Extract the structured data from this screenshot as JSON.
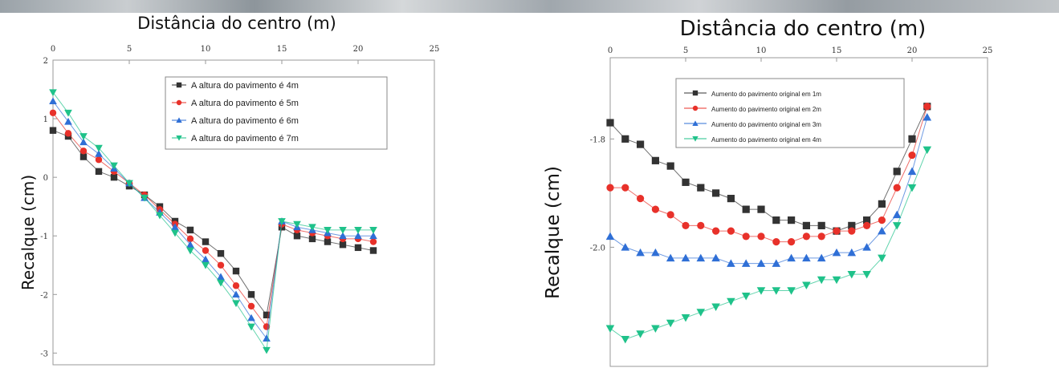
{
  "chart_data": [
    {
      "type": "line",
      "title": "Distância do centro (m)",
      "xlabel": "",
      "ylabel": "Recalque (cm)",
      "xlim": [
        0,
        25
      ],
      "ylim": [
        -3.2,
        2
      ],
      "xticks": [
        "0",
        "5",
        "10",
        "15",
        "20",
        "25"
      ],
      "yticks": [
        "2",
        "1",
        "0",
        "-1",
        "-2",
        "-3"
      ],
      "legend_position": "top-right",
      "x": [
        0,
        1,
        2,
        3,
        4,
        5,
        6,
        7,
        8,
        9,
        10,
        11,
        12,
        13,
        14,
        15,
        16,
        17,
        18,
        19,
        20,
        21
      ],
      "series": [
        {
          "name": "A altura do pavimento é 4m",
          "color": "#333333",
          "marker": "square",
          "values": [
            0.8,
            0.7,
            0.35,
            0.1,
            0.0,
            -0.15,
            -0.3,
            -0.5,
            -0.75,
            -0.9,
            -1.1,
            -1.3,
            -1.6,
            -2.0,
            -2.35,
            -0.85,
            -1.0,
            -1.05,
            -1.1,
            -1.15,
            -1.2,
            -1.25
          ]
        },
        {
          "name": "A altura do pavimento é 5m",
          "color": "#e8312a",
          "marker": "circle",
          "values": [
            1.1,
            0.75,
            0.45,
            0.3,
            0.1,
            -0.1,
            -0.3,
            -0.55,
            -0.8,
            -1.05,
            -1.25,
            -1.5,
            -1.85,
            -2.2,
            -2.55,
            -0.8,
            -0.9,
            -0.95,
            -1.0,
            -1.05,
            -1.05,
            -1.1
          ]
        },
        {
          "name": "A altura do pavimento é 6m",
          "color": "#2f6fd6",
          "marker": "triangle-up",
          "values": [
            1.3,
            0.95,
            0.6,
            0.4,
            0.15,
            -0.1,
            -0.35,
            -0.6,
            -0.85,
            -1.15,
            -1.4,
            -1.7,
            -2.0,
            -2.4,
            -2.75,
            -0.75,
            -0.85,
            -0.9,
            -0.95,
            -1.0,
            -1.0,
            -1.0
          ]
        },
        {
          "name": "A altura do pavimento é 7m",
          "color": "#1fc28a",
          "marker": "triangle-down",
          "values": [
            1.45,
            1.1,
            0.7,
            0.5,
            0.2,
            -0.1,
            -0.35,
            -0.65,
            -0.95,
            -1.25,
            -1.5,
            -1.8,
            -2.15,
            -2.55,
            -2.95,
            -0.75,
            -0.8,
            -0.85,
            -0.9,
            -0.9,
            -0.9,
            -0.9
          ]
        }
      ]
    },
    {
      "type": "line",
      "title": "Distância do centro (m)",
      "xlabel": "",
      "ylabel": "Recalque (cm)",
      "xlim": [
        0,
        25
      ],
      "ylim": [
        -2.22,
        -1.65
      ],
      "xticks": [
        "0",
        "5",
        "10",
        "15",
        "20",
        "25"
      ],
      "yticks": [
        "-1.8",
        "-2.0"
      ],
      "legend_position": "top-center",
      "x": [
        0,
        1,
        2,
        3,
        4,
        5,
        6,
        7,
        8,
        9,
        10,
        11,
        12,
        13,
        14,
        15,
        16,
        17,
        18,
        19,
        20,
        21
      ],
      "series": [
        {
          "name": "Aumento do pavimento original em 1m",
          "color": "#333333",
          "marker": "square",
          "values": [
            -1.77,
            -1.8,
            -1.81,
            -1.84,
            -1.85,
            -1.88,
            -1.89,
            -1.9,
            -1.91,
            -1.93,
            -1.93,
            -1.95,
            -1.95,
            -1.96,
            -1.96,
            -1.97,
            -1.96,
            -1.95,
            -1.92,
            -1.86,
            -1.8,
            -1.74
          ]
        },
        {
          "name": "Aumento do pavimento original em 2m",
          "color": "#e8312a",
          "marker": "circle",
          "values": [
            -1.89,
            -1.89,
            -1.91,
            -1.93,
            -1.94,
            -1.96,
            -1.96,
            -1.97,
            -1.97,
            -1.98,
            -1.98,
            -1.99,
            -1.99,
            -1.98,
            -1.98,
            -1.97,
            -1.97,
            -1.96,
            -1.95,
            -1.89,
            -1.83,
            -1.74
          ]
        },
        {
          "name": "Aumento do pavimento original em 3m",
          "color": "#2f6fd6",
          "marker": "triangle-up",
          "values": [
            -1.98,
            -2.0,
            -2.01,
            -2.01,
            -2.02,
            -2.02,
            -2.02,
            -2.02,
            -2.03,
            -2.03,
            -2.03,
            -2.03,
            -2.02,
            -2.02,
            -2.02,
            -2.01,
            -2.01,
            -2.0,
            -1.97,
            -1.94,
            -1.86,
            -1.76
          ]
        },
        {
          "name": "Aumento do pavimento original em 4m",
          "color": "#1fc28a",
          "marker": "triangle-down",
          "values": [
            -2.15,
            -2.17,
            -2.16,
            -2.15,
            -2.14,
            -2.13,
            -2.12,
            -2.11,
            -2.1,
            -2.09,
            -2.08,
            -2.08,
            -2.08,
            -2.07,
            -2.06,
            -2.06,
            -2.05,
            -2.05,
            -2.02,
            -1.96,
            -1.89,
            -1.82
          ]
        }
      ]
    }
  ]
}
